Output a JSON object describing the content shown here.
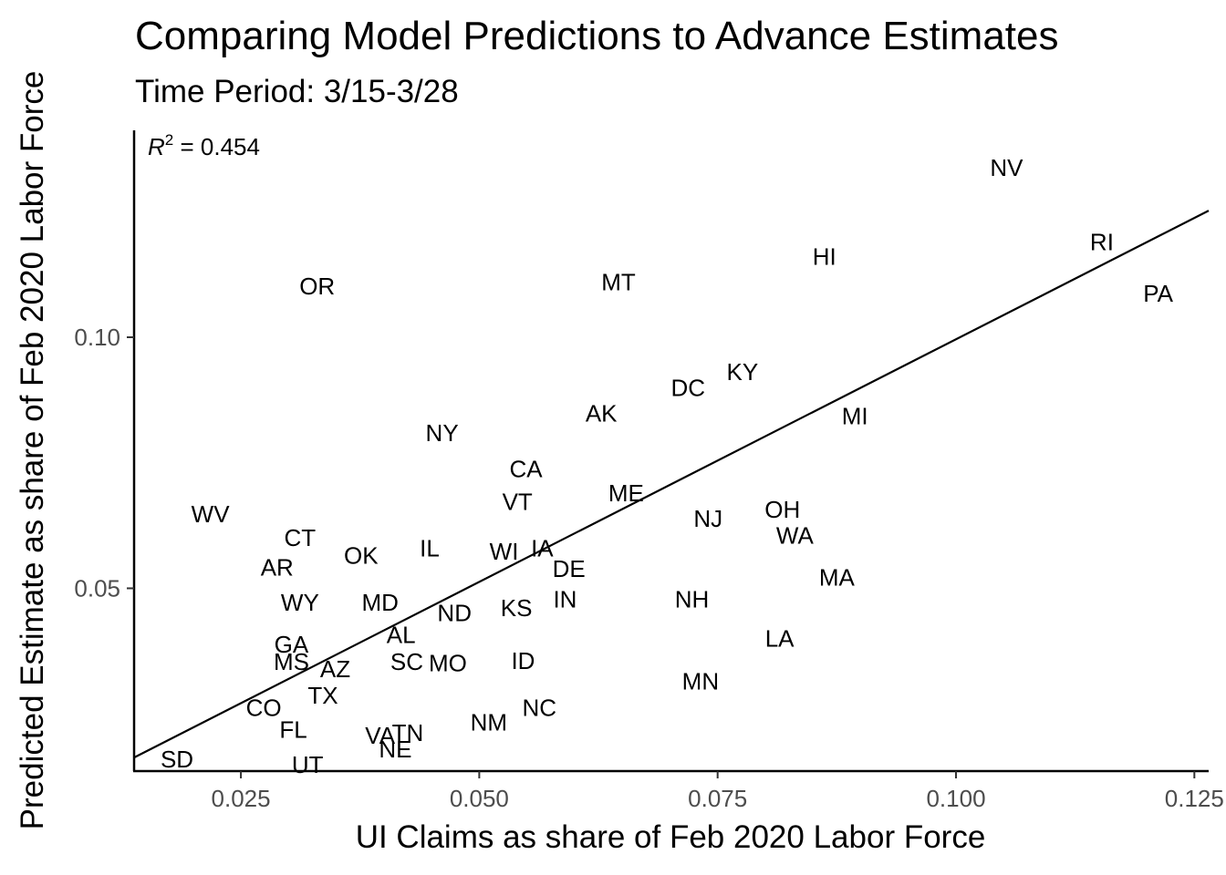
{
  "chart_data": {
    "type": "scatter",
    "title": "Comparing Model Predictions to Advance Estimates",
    "subtitle": "Time Period:  3/15-3/28",
    "xlabel": "UI Claims as share of Feb 2020 Labor Force",
    "ylabel": "Predicted Estimate as share of Feb 2020 Labor Force",
    "xlim": [
      0.0138,
      0.1265
    ],
    "ylim": [
      0.0136,
      0.1412
    ],
    "xticks": [
      0.025,
      0.05,
      0.075,
      0.1,
      0.125
    ],
    "xtick_labels": [
      "0.025",
      "0.050",
      "0.075",
      "0.100",
      "0.125"
    ],
    "yticks": [
      0.05,
      0.1
    ],
    "ytick_labels": [
      "0.05",
      "0.10"
    ],
    "grid": false,
    "annotation": {
      "r_symbol": "R",
      "r_exp": "2",
      "r_value": " = 0.454"
    },
    "fit_line": {
      "x": [
        0.0138,
        0.1265
      ],
      "y": [
        0.0163,
        0.1252
      ]
    },
    "points": [
      {
        "label": "NV",
        "x": 0.1053,
        "y": 0.1338
      },
      {
        "label": "RI",
        "x": 0.1153,
        "y": 0.119
      },
      {
        "label": "PA",
        "x": 0.1212,
        "y": 0.1087
      },
      {
        "label": "HI",
        "x": 0.0862,
        "y": 0.1161
      },
      {
        "label": "OR",
        "x": 0.033,
        "y": 0.1102
      },
      {
        "label": "MT",
        "x": 0.0646,
        "y": 0.111
      },
      {
        "label": "KY",
        "x": 0.0776,
        "y": 0.0931
      },
      {
        "label": "DC",
        "x": 0.0719,
        "y": 0.0899
      },
      {
        "label": "MI",
        "x": 0.0894,
        "y": 0.0843
      },
      {
        "label": "AK",
        "x": 0.0628,
        "y": 0.0848
      },
      {
        "label": "NY",
        "x": 0.0461,
        "y": 0.0809
      },
      {
        "label": "CA",
        "x": 0.0549,
        "y": 0.0738
      },
      {
        "label": "VT",
        "x": 0.054,
        "y": 0.0672
      },
      {
        "label": "ME",
        "x": 0.0654,
        "y": 0.069
      },
      {
        "label": "NJ",
        "x": 0.074,
        "y": 0.0639
      },
      {
        "label": "OH",
        "x": 0.0818,
        "y": 0.0657
      },
      {
        "label": "WA",
        "x": 0.0831,
        "y": 0.0605
      },
      {
        "label": "WV",
        "x": 0.0218,
        "y": 0.0648
      },
      {
        "label": "CT",
        "x": 0.0312,
        "y": 0.0601
      },
      {
        "label": "AR",
        "x": 0.0288,
        "y": 0.0542
      },
      {
        "label": "OK",
        "x": 0.0376,
        "y": 0.0565
      },
      {
        "label": "IL",
        "x": 0.0448,
        "y": 0.058
      },
      {
        "label": "WI",
        "x": 0.0526,
        "y": 0.0573
      },
      {
        "label": "IA",
        "x": 0.0566,
        "y": 0.058
      },
      {
        "label": "DE",
        "x": 0.0594,
        "y": 0.0539
      },
      {
        "label": "MA",
        "x": 0.0875,
        "y": 0.0522
      },
      {
        "label": "IN",
        "x": 0.059,
        "y": 0.0478
      },
      {
        "label": "NH",
        "x": 0.0723,
        "y": 0.0478
      },
      {
        "label": "WY",
        "x": 0.0312,
        "y": 0.0472
      },
      {
        "label": "MD",
        "x": 0.0396,
        "y": 0.0472
      },
      {
        "label": "ND",
        "x": 0.0474,
        "y": 0.0451
      },
      {
        "label": "KS",
        "x": 0.0539,
        "y": 0.0461
      },
      {
        "label": "LA",
        "x": 0.0815,
        "y": 0.04
      },
      {
        "label": "AL",
        "x": 0.0418,
        "y": 0.0407
      },
      {
        "label": "GA",
        "x": 0.0303,
        "y": 0.0388
      },
      {
        "label": "MS",
        "x": 0.0303,
        "y": 0.0354
      },
      {
        "label": "AZ",
        "x": 0.0349,
        "y": 0.0339
      },
      {
        "label": "SC",
        "x": 0.0424,
        "y": 0.0354
      },
      {
        "label": "MO",
        "x": 0.0467,
        "y": 0.0351
      },
      {
        "label": "ID",
        "x": 0.0546,
        "y": 0.0356
      },
      {
        "label": "MN",
        "x": 0.0732,
        "y": 0.0315
      },
      {
        "label": "TX",
        "x": 0.0336,
        "y": 0.0287
      },
      {
        "label": "CO",
        "x": 0.0274,
        "y": 0.0262
      },
      {
        "label": "NC",
        "x": 0.0563,
        "y": 0.0262
      },
      {
        "label": "NM",
        "x": 0.051,
        "y": 0.0233
      },
      {
        "label": "FL",
        "x": 0.0305,
        "y": 0.0219
      },
      {
        "label": "VA",
        "x": 0.0396,
        "y": 0.0207
      },
      {
        "label": "TN",
        "x": 0.0425,
        "y": 0.0212
      },
      {
        "label": "NE",
        "x": 0.0412,
        "y": 0.018
      },
      {
        "label": "SD",
        "x": 0.0183,
        "y": 0.016
      },
      {
        "label": "UT",
        "x": 0.032,
        "y": 0.0149
      }
    ]
  }
}
